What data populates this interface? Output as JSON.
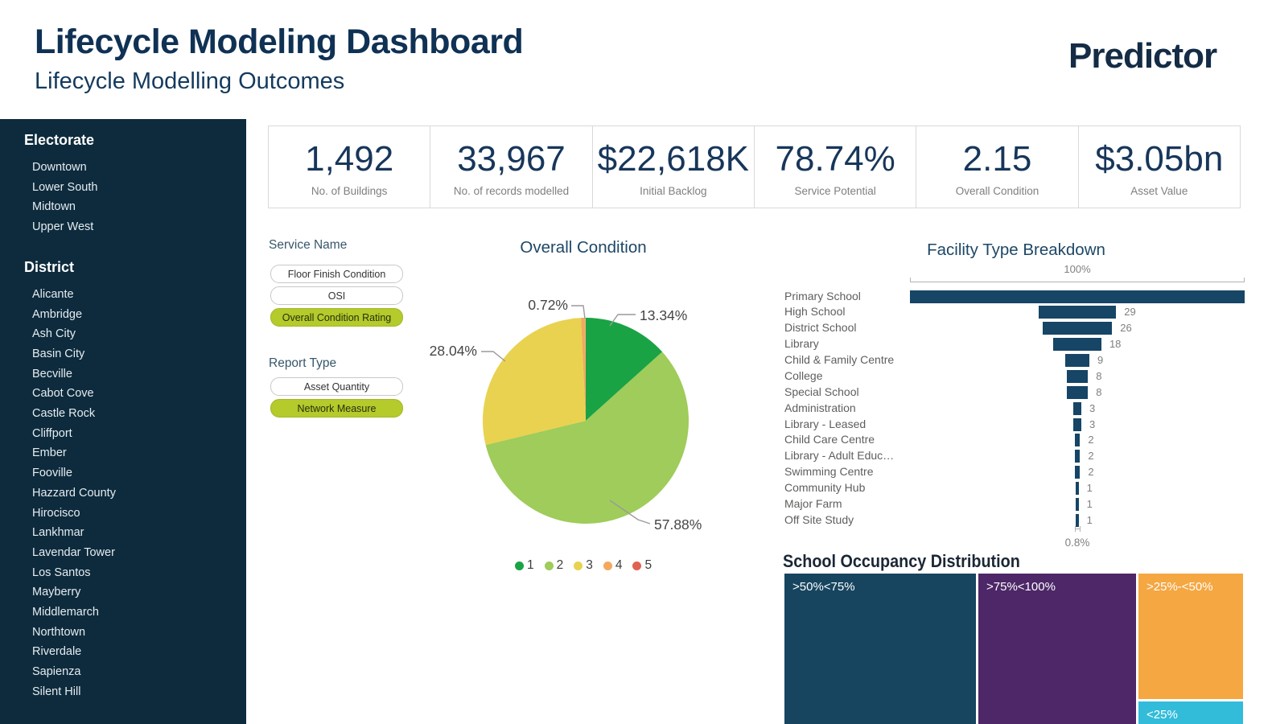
{
  "header": {
    "title": "Lifecycle Modeling Dashboard",
    "subtitle": "Lifecycle Modelling Outcomes",
    "logo": "Predictor"
  },
  "sidebar": {
    "electorate": {
      "heading": "Electorate",
      "items": [
        "Downtown",
        "Lower South",
        "Midtown",
        "Upper West"
      ]
    },
    "district": {
      "heading": "District",
      "items": [
        "Alicante",
        "Ambridge",
        "Ash City",
        "Basin City",
        "Becville",
        "Cabot Cove",
        "Castle Rock",
        "Cliffport",
        "Ember",
        "Fooville",
        "Hazzard County",
        "Hirocisco",
        "Lankhmar",
        "Lavendar Tower",
        "Los Santos",
        "Mayberry",
        "Middlemarch",
        "Northtown",
        "Riverdale",
        "Sapienza",
        "Silent Hill"
      ]
    }
  },
  "kpis": [
    {
      "value": "1,492",
      "label": "No. of Buildings"
    },
    {
      "value": "33,967",
      "label": "No. of records modelled"
    },
    {
      "value": "$22,618K",
      "label": "Initial Backlog"
    },
    {
      "value": "78.74%",
      "label": "Service Potential"
    },
    {
      "value": "2.15",
      "label": "Overall Condition"
    },
    {
      "value": "$3.05bn",
      "label": "Asset Value"
    }
  ],
  "filters": {
    "service_name": {
      "label": "Service Name",
      "options": [
        {
          "label": "Floor Finish Condition",
          "selected": false
        },
        {
          "label": "OSI",
          "selected": false
        },
        {
          "label": "Overall Condition Rating",
          "selected": true
        }
      ]
    },
    "report_type": {
      "label": "Report Type",
      "options": [
        {
          "label": "Asset Quantity",
          "selected": false
        },
        {
          "label": "Network Measure",
          "selected": true
        }
      ]
    }
  },
  "pie": {
    "title": "Overall Condition",
    "slices": [
      {
        "label": "1",
        "pct": 13.34,
        "pct_label": "13.34%",
        "color": "#1aa345"
      },
      {
        "label": "2",
        "pct": 57.88,
        "pct_label": "57.88%",
        "color": "#9fcc5a"
      },
      {
        "label": "3",
        "pct": 28.04,
        "pct_label": "28.04%",
        "color": "#e9d24f"
      },
      {
        "label": "4",
        "pct": 0.72,
        "pct_label": "0.72%",
        "color": "#f2a95e"
      },
      {
        "label": "5",
        "pct": 0,
        "pct_label": "",
        "color": "#e0614f"
      }
    ]
  },
  "funnel": {
    "title": "Facility Type Breakdown",
    "top_axis_label": "100%",
    "bottom_label": "0.8%",
    "rows": [
      {
        "label": "Primary School",
        "width_pct": 100,
        "value_label": ""
      },
      {
        "label": "High School",
        "width_pct": 23.2,
        "value_label": "29"
      },
      {
        "label": "District School",
        "width_pct": 20.8,
        "value_label": "26"
      },
      {
        "label": "Library",
        "width_pct": 14.4,
        "value_label": "18"
      },
      {
        "label": "Child & Family Centre",
        "width_pct": 7.2,
        "value_label": "9"
      },
      {
        "label": "College",
        "width_pct": 6.4,
        "value_label": "8"
      },
      {
        "label": "Special School",
        "width_pct": 6.4,
        "value_label": "8"
      },
      {
        "label": "Administration",
        "width_pct": 2.4,
        "value_label": "3"
      },
      {
        "label": "Library - Leased",
        "width_pct": 2.4,
        "value_label": "3"
      },
      {
        "label": "Child Care Centre",
        "width_pct": 1.6,
        "value_label": "2"
      },
      {
        "label": "Library - Adult Educ…",
        "width_pct": 1.6,
        "value_label": "2"
      },
      {
        "label": "Swimming Centre",
        "width_pct": 1.6,
        "value_label": "2"
      },
      {
        "label": "Community Hub",
        "width_pct": 0.8,
        "value_label": "1"
      },
      {
        "label": "Major Farm",
        "width_pct": 0.8,
        "value_label": "1"
      },
      {
        "label": "Off Site Study",
        "width_pct": 0.8,
        "value_label": "1"
      }
    ]
  },
  "treemap": {
    "title": "School Occupancy Distribution",
    "tiles": [
      {
        "label": ">50%<75%",
        "color": "#17455f"
      },
      {
        "label": ">75%<100%",
        "color": "#4d2767"
      },
      {
        "label": ">25%-<50%",
        "color": "#f5a742"
      },
      {
        "label": "<25%",
        "color": "#32bcd9"
      }
    ]
  },
  "chart_data": [
    {
      "type": "pie",
      "title": "Overall Condition",
      "labels": [
        "1",
        "2",
        "3",
        "4",
        "5"
      ],
      "values_pct": [
        13.34,
        57.88,
        28.04,
        0.72,
        null
      ],
      "colors": [
        "#1aa345",
        "#9fcc5a",
        "#e9d24f",
        "#f2a95e",
        "#e0614f"
      ],
      "legend_position": "bottom",
      "start_angle": "12 o'clock, clockwise"
    },
    {
      "type": "bar",
      "subtype": "funnel-centered-horizontal",
      "title": "Facility Type Breakdown",
      "categories": [
        "Primary School",
        "High School",
        "District School",
        "Library",
        "Child & Family Centre",
        "College",
        "Special School",
        "Administration",
        "Library - Leased",
        "Child Care Centre",
        "Library - Adult Educ…",
        "Swimming Centre",
        "Community Hub",
        "Major Farm",
        "Off Site Study"
      ],
      "values": [
        null,
        29,
        26,
        18,
        9,
        8,
        8,
        3,
        3,
        2,
        2,
        2,
        1,
        1,
        1
      ],
      "bar_width_pct_of_max": [
        100,
        23.2,
        20.8,
        14.4,
        7.2,
        6.4,
        6.4,
        2.4,
        2.4,
        1.6,
        1.6,
        1.6,
        0.8,
        0.8,
        0.8
      ],
      "top_axis_label": "100%",
      "bottom_label": "0.8%",
      "bar_color": "#164565"
    },
    {
      "type": "heatmap",
      "subtype": "treemap",
      "title": "School Occupancy Distribution",
      "categories": [
        ">50%<75%",
        ">75%<100%",
        ">25%-<50%",
        "<25%"
      ],
      "visible_area_share": [
        0.45,
        0.37,
        0.14,
        0.04
      ],
      "colors": [
        "#17455f",
        "#4d2767",
        "#f5a742",
        "#32bcd9"
      ]
    }
  ]
}
